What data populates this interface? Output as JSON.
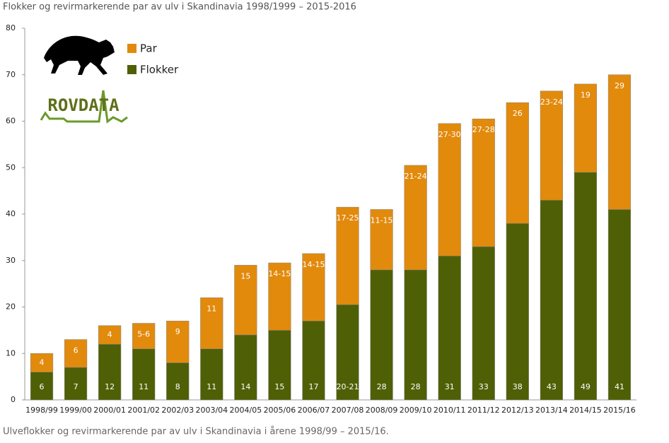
{
  "chart_data": {
    "type": "stacked-bar",
    "title": "Flokker og revirmarkerende par av ulv i Skandinavia 1998/1999 – 2015-2016",
    "caption": "Ulveflokker og revirmarkerende par av ulv i Skandinavia i årene 1998/99 – 2015/16.",
    "logo": "ROVDATA",
    "categories": [
      "1998/99",
      "1999/00",
      "2000/01",
      "2001/02",
      "2002/03",
      "2003/04",
      "2004/05",
      "2005/06",
      "2006/07",
      "2007/08",
      "2008/09",
      "2009/10",
      "2010/11",
      "2011/12",
      "2012/13",
      "2013/14",
      "2014/15",
      "2015/16"
    ],
    "series": [
      {
        "name": "Flokker",
        "color": "#4f5f06",
        "values": [
          6,
          7,
          12,
          11,
          8,
          11,
          14,
          15,
          17,
          20.5,
          28,
          28,
          31,
          33,
          38,
          43,
          49,
          41
        ],
        "value_labels": [
          "6",
          "7",
          "12",
          "11",
          "8",
          "11",
          "14",
          "15",
          "17",
          "20-21",
          "28",
          "28",
          "31",
          "33",
          "38",
          "43",
          "49",
          "41"
        ]
      },
      {
        "name": "Par",
        "color": "#e28a0c",
        "values": [
          4,
          6,
          4,
          5.5,
          9,
          11,
          15,
          14.5,
          14.5,
          21,
          13,
          22.5,
          28.5,
          27.5,
          26,
          23.5,
          19,
          29
        ],
        "value_labels": [
          "4",
          "6",
          "4",
          "5-6",
          "9",
          "11",
          "15",
          "14-15",
          "14-15",
          "17-25",
          "11-15",
          "21-24",
          "27-30",
          "27-28",
          "26",
          "23-24",
          "19",
          "29"
        ]
      }
    ],
    "ylim": [
      0,
      80
    ],
    "yticks": [
      0,
      10,
      20,
      30,
      40,
      50,
      60,
      70,
      80
    ],
    "grid": false,
    "legend": "upper left"
  }
}
